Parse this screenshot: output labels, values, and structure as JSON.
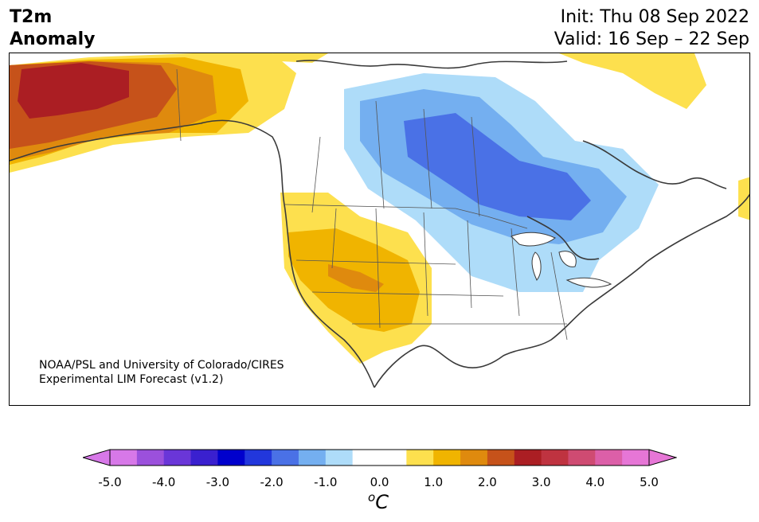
{
  "title": {
    "variable_line1": "T2m",
    "variable_line2": "Anomaly",
    "init_line": "Init: Thu 08 Sep 2022",
    "valid_line": "Valid: 16 Sep – 22 Sep"
  },
  "credit": {
    "line1": "NOAA/PSL and University of Colorado/CIRES",
    "line2": "Experimental LIM Forecast (v1.2)"
  },
  "colorbar": {
    "unit_main": "C",
    "unit_sup": "o",
    "ticks": [
      "-5.0",
      "-4.0",
      "-3.0",
      "-2.0",
      "-1.0",
      "0.0",
      "1.0",
      "2.0",
      "3.0",
      "4.0",
      "5.0"
    ],
    "colors": [
      "#d778e8",
      "#9b50dc",
      "#6a36d8",
      "#3a20cf",
      "#0000cd",
      "#2237dc",
      "#4a71e6",
      "#74aff0",
      "#aedcf9",
      "#ffffff",
      "#ffffff",
      "#fde04e",
      "#f0b400",
      "#df8a0e",
      "#c6521a",
      "#ab1e23",
      "#bf3340",
      "#cf4b72",
      "#dc5fa8",
      "#e676d6"
    ],
    "under_color": "#d778e8",
    "over_color": "#e676d6"
  },
  "colors": {
    "frame": "#000000",
    "coast": "#3a3a3a",
    "border": "#555555"
  }
}
